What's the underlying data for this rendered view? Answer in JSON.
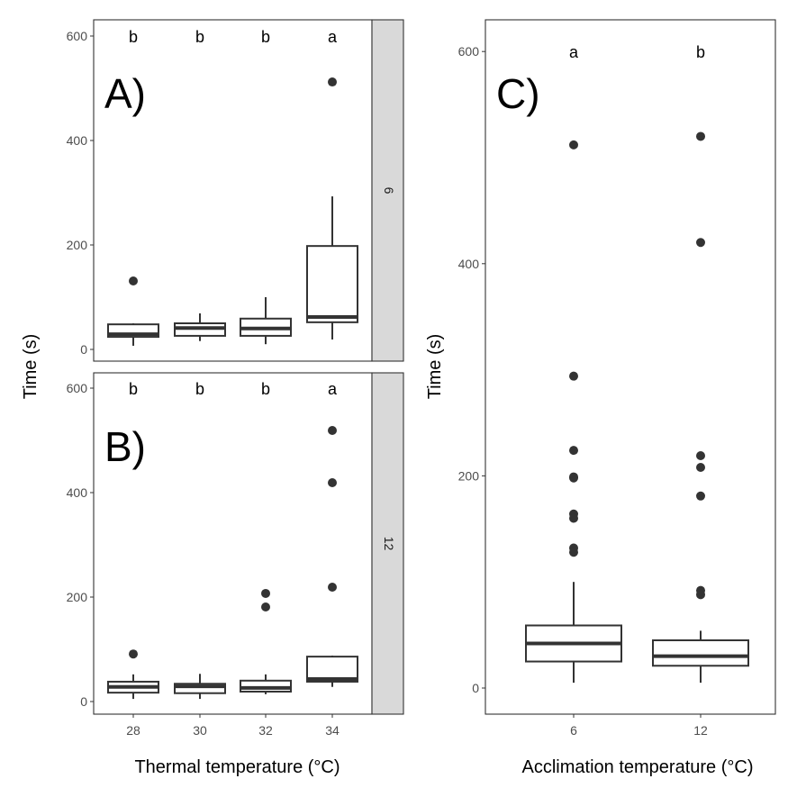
{
  "chart_data": [
    {
      "type": "boxplot",
      "panel_label": "A)",
      "strip_label": "6",
      "ylabel": "Time (s)",
      "ylim": [
        -20,
        630
      ],
      "yticks": [
        "0",
        "200",
        "400",
        "600"
      ],
      "categories": [
        "28",
        "30",
        "32",
        "34"
      ],
      "letters": [
        "b",
        "b",
        "b",
        "a"
      ],
      "boxes": [
        {
          "low": 7,
          "q1": 24,
          "median": 29,
          "q3": 48,
          "high": 50,
          "outliers": [
            131
          ]
        },
        {
          "low": 16,
          "q1": 26,
          "median": 41,
          "q3": 50,
          "high": 69,
          "outliers": []
        },
        {
          "low": 10,
          "q1": 26,
          "median": 40,
          "q3": 59,
          "high": 100,
          "outliers": []
        },
        {
          "low": 19,
          "q1": 52,
          "median": 62,
          "q3": 198,
          "high": 293,
          "outliers": [
            512
          ]
        }
      ]
    },
    {
      "type": "boxplot",
      "panel_label": "B)",
      "strip_label": "12",
      "ylim": [
        -20,
        630
      ],
      "yticks": [
        "0",
        "200",
        "400",
        "600"
      ],
      "categories": [
        "28",
        "30",
        "32",
        "34"
      ],
      "xlabel": "Thermal temperature (°C)",
      "letters": [
        "b",
        "b",
        "b",
        "a"
      ],
      "boxes": [
        {
          "low": 5,
          "q1": 17,
          "median": 28,
          "q3": 38,
          "high": 52,
          "outliers": [
            91
          ]
        },
        {
          "low": 5,
          "q1": 16,
          "median": 29,
          "q3": 34,
          "high": 53,
          "outliers": []
        },
        {
          "low": 14,
          "q1": 19,
          "median": 26,
          "q3": 40,
          "high": 52,
          "outliers": [
            207,
            181
          ]
        },
        {
          "low": 28,
          "q1": 38,
          "median": 43,
          "q3": 86,
          "high": 88,
          "outliers": [
            519,
            419,
            219
          ]
        }
      ]
    },
    {
      "type": "boxplot",
      "panel_label": "C)",
      "ylabel": "Time (s)",
      "xlabel": "Acclimation temperature (°C)",
      "ylim": [
        -24,
        630
      ],
      "yticks": [
        "0",
        "200",
        "400",
        "600"
      ],
      "categories": [
        "6",
        "12"
      ],
      "letters": [
        "a",
        "b"
      ],
      "boxes": [
        {
          "low": 5,
          "q1": 25,
          "median": 42,
          "q3": 59,
          "high": 100,
          "outliers": [
            512,
            294,
            224,
            199,
            198,
            164,
            160,
            132,
            128
          ]
        },
        {
          "low": 5,
          "q1": 21,
          "median": 30,
          "q3": 45,
          "high": 54,
          "outliers": [
            520,
            420,
            219,
            208,
            181,
            92,
            88
          ]
        }
      ]
    }
  ]
}
